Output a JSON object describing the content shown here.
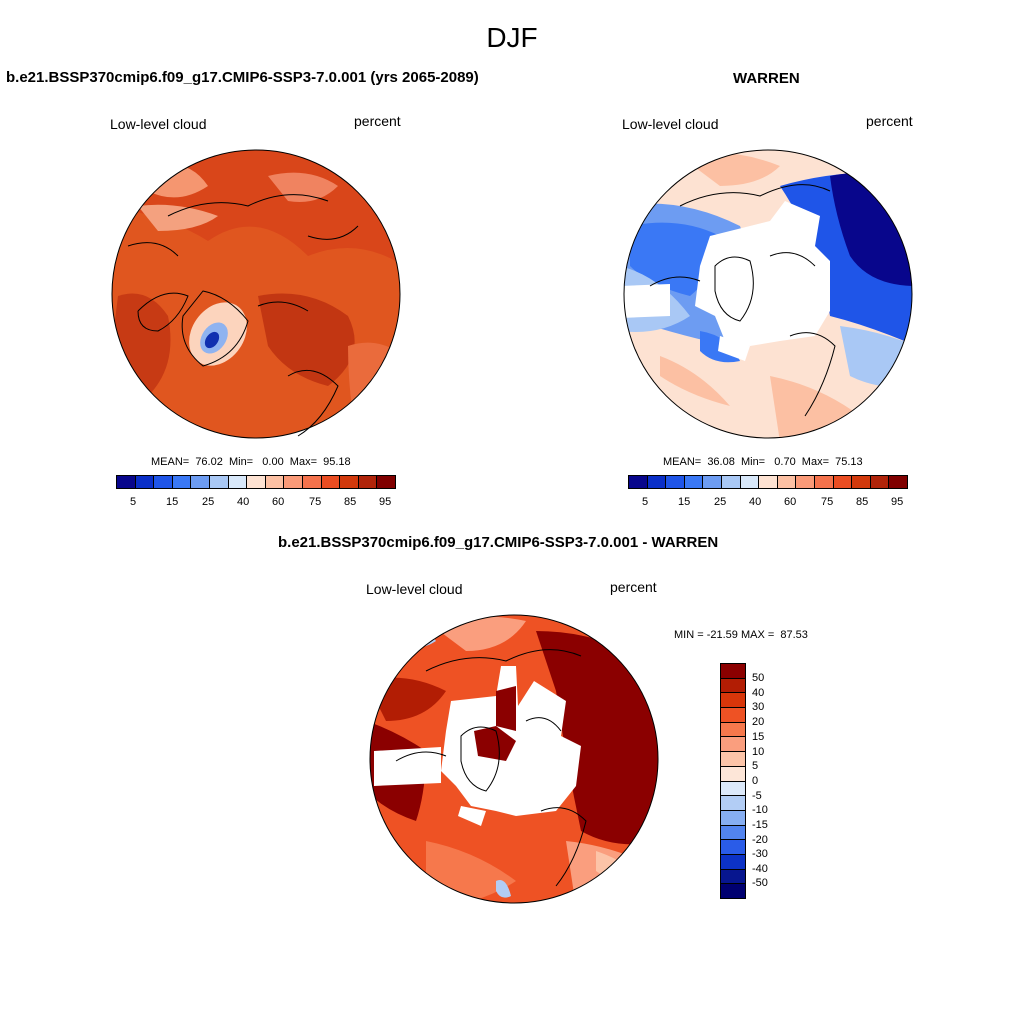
{
  "figure": {
    "season": "DJF"
  },
  "panel_left": {
    "title": "b.e21.BSSP370cmip6.f09_g17.CMIP6-SSP3-7.0.001 (yrs 2065-2089)",
    "variable": "Low-level cloud",
    "units": "percent",
    "stats": "MEAN=  76.02  Min=   0.00  Max=  95.18"
  },
  "panel_right": {
    "title": "WARREN",
    "variable": "Low-level cloud",
    "units": "percent",
    "stats": "MEAN=  36.08  Min=   0.70  Max=  75.13"
  },
  "panel_diff": {
    "title": "b.e21.BSSP370cmip6.f09_g17.CMIP6-SSP3-7.0.001 - WARREN",
    "variable": "Low-level cloud",
    "units": "percent",
    "stats": "MIN = -21.59 MAX =  87.53"
  },
  "colorbar_main": {
    "labels": [
      "5",
      "15",
      "25",
      "40",
      "60",
      "75",
      "85",
      "95"
    ],
    "colors": [
      "#08068c",
      "#0a2fc8",
      "#1f55e8",
      "#3a78f5",
      "#6d9cf2",
      "#a9c8f5",
      "#d8e8fa",
      "#fde2d2",
      "#fcc0a3",
      "#fa9a78",
      "#f4724c",
      "#ea4d22",
      "#d2390c",
      "#b0240a",
      "#800000"
    ]
  },
  "colorbar_diff": {
    "labels": [
      "50",
      "40",
      "30",
      "20",
      "15",
      "10",
      "5",
      "0",
      "-5",
      "-10",
      "-15",
      "-20",
      "-30",
      "-40",
      "-50"
    ],
    "colors": [
      "#8b0000",
      "#b21d04",
      "#d8360a",
      "#ee5224",
      "#f6784c",
      "#fa9e7e",
      "#fcc4a8",
      "#fde6d8",
      "#dce9fa",
      "#b2cdf5",
      "#86aef2",
      "#5284ef",
      "#2a5ce8",
      "#0c32c6",
      "#07168f",
      "#000070"
    ]
  }
}
